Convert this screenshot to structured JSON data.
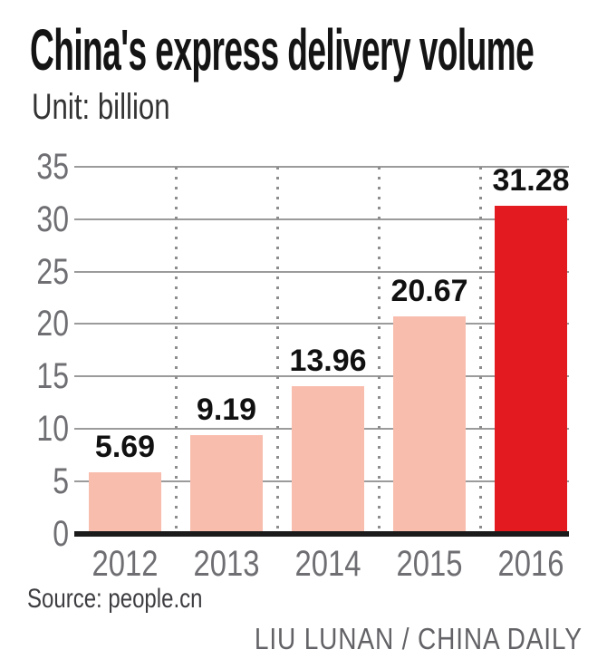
{
  "header": {
    "title": "China's express delivery volume",
    "unit_label": "Unit: billion"
  },
  "chart_data": {
    "type": "bar",
    "title": "China's express delivery volume",
    "unit": "billion",
    "categories": [
      "2012",
      "2013",
      "2014",
      "2015",
      "2016"
    ],
    "values": [
      5.69,
      9.19,
      13.96,
      20.67,
      31.28
    ],
    "value_labels": [
      "5.69",
      "9.19",
      "13.96",
      "20.67",
      "31.28"
    ],
    "y_ticks": [
      "35",
      "30",
      "25",
      "20",
      "15",
      "10",
      "5",
      "0"
    ],
    "ylim": [
      0,
      35
    ],
    "grid": "horizontal solid lines, dotted vertical separators between categories",
    "legend": "none",
    "highlight_category": "2016",
    "bar_colors": [
      "#f9bdae",
      "#f9bdae",
      "#f9bdae",
      "#f9bdae",
      "#e31a1f"
    ]
  },
  "footer": {
    "source": "Source: people.cn",
    "credit": "LIU LUNAN / CHINA DAILY"
  },
  "colors": {
    "bar_default": "#f9bdae",
    "bar_highlight": "#e31a1f",
    "axis_text": "#6f6f73",
    "value_text": "#111111",
    "grid_line": "#9b9b9b",
    "dot_line": "#8d8d8d",
    "baseline": "#1b1b1b"
  }
}
